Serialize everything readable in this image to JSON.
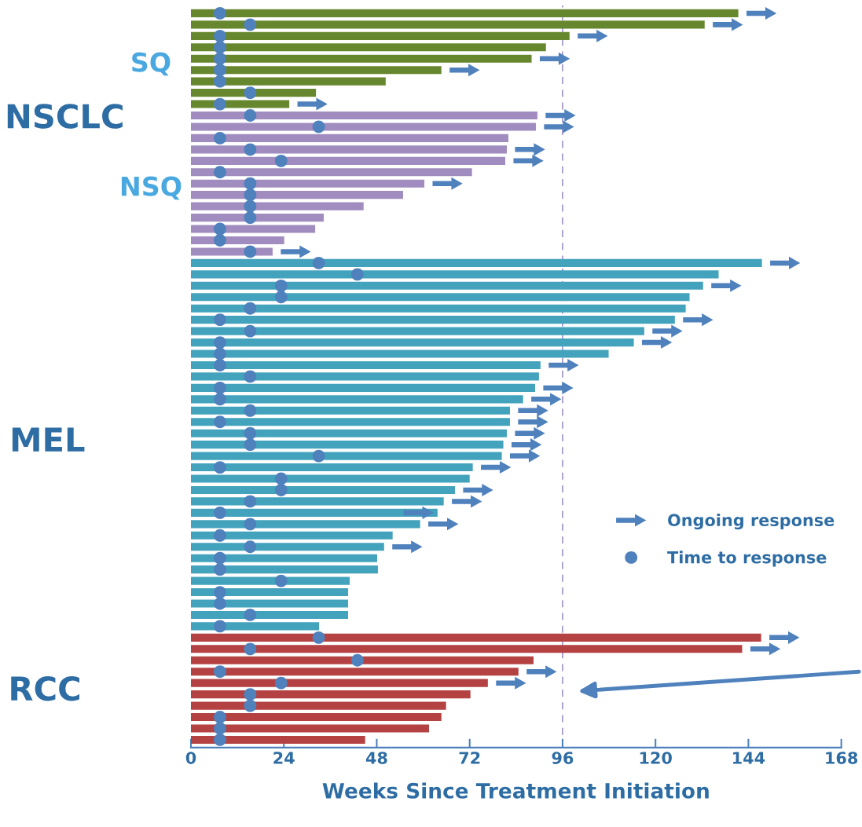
{
  "chart_data": {
    "type": "bar",
    "orientation": "horizontal",
    "categories": [
      null,
      null,
      null,
      null,
      null,
      null,
      null,
      null,
      null,
      null,
      null,
      null,
      null,
      null,
      null,
      null,
      null,
      null,
      null,
      null,
      null,
      null,
      null,
      null,
      null,
      null,
      null,
      null,
      null,
      null,
      null,
      null,
      null,
      null,
      null,
      null,
      null,
      null,
      null,
      null,
      null,
      null,
      null,
      null,
      null,
      null,
      null,
      null,
      null,
      null,
      null,
      null,
      null,
      null,
      null,
      null,
      null,
      null,
      null,
      null,
      null,
      null,
      null,
      null,
      null
    ],
    "series": [
      {
        "colors": [
          "#67872f",
          "#67872f",
          "#67872f",
          "#67872f",
          "#67872f",
          "#67872f",
          "#67872f",
          "#67872f",
          "#67872f",
          "#a08cbf",
          "#a08cbf",
          "#a08cbf",
          "#a08cbf",
          "#a08cbf",
          "#a08cbf",
          "#a08cbf",
          "#a08cbf",
          "#a08cbf",
          "#a08cbf",
          "#a08cbf",
          "#a08cbf",
          "#a08cbf",
          "#43a3bd",
          "#43a3bd",
          "#43a3bd",
          "#43a3bd",
          "#43a3bd",
          "#43a3bd",
          "#43a3bd",
          "#43a3bd",
          "#43a3bd",
          "#43a3bd",
          "#43a3bd",
          "#43a3bd",
          "#43a3bd",
          "#43a3bd",
          "#43a3bd",
          "#43a3bd",
          "#43a3bd",
          "#43a3bd",
          "#43a3bd",
          "#43a3bd",
          "#43a3bd",
          "#43a3bd",
          "#43a3bd",
          "#43a3bd",
          "#43a3bd",
          "#43a3bd",
          "#43a3bd",
          "#43a3bd",
          "#43a3bd",
          "#43a3bd",
          "#43a3bd",
          "#43a3bd",
          "#43a3bd",
          "#b44242",
          "#b44242",
          "#b44242",
          "#b44242",
          "#b44242",
          "#b44242",
          "#b44242",
          "#b44242",
          "#b44242",
          "#b44242"
        ],
        "values": [
          141.4,
          132.7,
          97.8,
          91.7,
          88.0,
          64.7,
          50.3,
          32.3,
          25.4,
          89.5,
          89.1,
          82.0,
          81.6,
          81.2,
          72.6,
          60.3,
          54.8,
          44.6,
          34.3,
          32.1,
          24.1,
          21.1,
          147.5,
          136.3,
          132.3,
          128.8,
          127.8,
          125.0,
          117.1,
          114.4,
          107.9,
          90.3,
          89.9,
          88.9,
          85.8,
          82.4,
          82.4,
          81.6,
          80.7,
          80.3,
          72.8,
          72.0,
          68.2,
          65.3,
          63.7,
          59.2,
          52.1,
          49.9,
          48.1,
          48.3,
          41.0,
          40.6,
          40.6,
          40.6,
          33.1,
          147.3,
          142.4,
          88.5,
          84.6,
          76.7,
          72.2,
          65.9,
          64.7,
          61.5,
          45.0
        ]
      },
      {
        "type": "scatter",
        "name": "Ongoing response",
        "color": "#4f81bd",
        "values": [
          147.4,
          138.7,
          103.8,
          null,
          94.0,
          70.7,
          null,
          null,
          31.4,
          95.5,
          95.1,
          null,
          87.6,
          87.2,
          null,
          66.3,
          null,
          null,
          null,
          null,
          null,
          27.1,
          153.5,
          null,
          138.3,
          null,
          null,
          131.0,
          123.1,
          120.4,
          null,
          96.3,
          null,
          94.9,
          91.8,
          88.4,
          88.4,
          87.6,
          86.7,
          86.3,
          78.8,
          null,
          74.2,
          71.3,
          58.8,
          65.2,
          null,
          55.9,
          null,
          null,
          null,
          null,
          null,
          null,
          null,
          153.3,
          148.4,
          null,
          90.6,
          82.7,
          null,
          null,
          null,
          null,
          null
        ]
      },
      {
        "type": "scatter",
        "name": "Time to response",
        "color": "#4f81bd",
        "marker": "circle",
        "values": [
          7.5,
          15.3,
          7.5,
          7.5,
          7.5,
          7.5,
          7.5,
          15.3,
          7.5,
          15.3,
          33,
          7.5,
          15.3,
          23.3,
          7.5,
          15.3,
          15.3,
          15.3,
          15.3,
          7.5,
          7.5,
          15.3,
          33,
          43,
          23.3,
          23.3,
          15.3,
          7.5,
          15.3,
          7.5,
          7.5,
          7.5,
          15.3,
          7.5,
          7.5,
          15.3,
          7.5,
          15.3,
          15.3,
          33,
          7.5,
          23.3,
          23.3,
          15.3,
          7.5,
          15.3,
          7.5,
          15.3,
          7.5,
          7.5,
          23.3,
          7.5,
          7.5,
          15.3,
          7.5,
          33,
          15.3,
          43,
          7.5,
          23.3,
          15.3,
          15.3,
          7.5,
          7.5,
          7.5
        ]
      }
    ],
    "xlim": [
      0,
      168
    ],
    "xticks": [
      0,
      24,
      48,
      72,
      96,
      120,
      144,
      168
    ],
    "xlabel": "Weeks Since Treatment Initiation",
    "ref_lines": [
      {
        "axis": "x",
        "value": 96,
        "color": "#a99bc8",
        "line_style": "dashed"
      }
    ],
    "annotations": [
      "NSCLC",
      "SQ",
      "NSQ",
      "MEL",
      "RCC"
    ],
    "legend": "bottom right",
    "tick_labels": "x"
  }
}
